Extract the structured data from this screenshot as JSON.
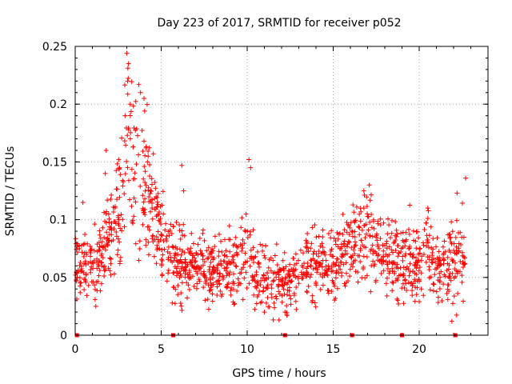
{
  "chart_data": {
    "type": "scatter",
    "title": "Day 223 of 2017, SRMTID for receiver p052",
    "xlabel": "GPS time / hours",
    "ylabel": "SRMTID / TECUs",
    "xlim": [
      0,
      24
    ],
    "ylim": [
      0,
      0.25
    ],
    "xticks": [
      0,
      5,
      10,
      15,
      20
    ],
    "yticks": [
      0,
      0.05,
      0.1,
      0.15,
      0.2,
      0.25
    ],
    "xtick_labels": [
      "0",
      "5",
      "10",
      "15",
      "20"
    ],
    "ytick_labels": [
      "0",
      "0.05",
      "0.1",
      "0.15",
      "0.2",
      "0.25"
    ],
    "grid": true,
    "marker": "+",
    "color": "#ff0000",
    "data_span_hours": [
      0,
      22.7
    ],
    "gap_markers_x": [
      0.1,
      5.7,
      12.2,
      16.1,
      19.0,
      22.1
    ],
    "trend": [
      {
        "x": 0.0,
        "y": 0.065,
        "spread": 0.014
      },
      {
        "x": 0.5,
        "y": 0.06,
        "spread": 0.014
      },
      {
        "x": 1.0,
        "y": 0.058,
        "spread": 0.014
      },
      {
        "x": 1.5,
        "y": 0.07,
        "spread": 0.017
      },
      {
        "x": 2.0,
        "y": 0.085,
        "spread": 0.02
      },
      {
        "x": 2.5,
        "y": 0.11,
        "spread": 0.025
      },
      {
        "x": 3.0,
        "y": 0.16,
        "spread": 0.035
      },
      {
        "x": 3.5,
        "y": 0.15,
        "spread": 0.035
      },
      {
        "x": 4.0,
        "y": 0.135,
        "spread": 0.03
      },
      {
        "x": 4.5,
        "y": 0.105,
        "spread": 0.022
      },
      {
        "x": 5.0,
        "y": 0.085,
        "spread": 0.018
      },
      {
        "x": 5.5,
        "y": 0.07,
        "spread": 0.016
      },
      {
        "x": 6.0,
        "y": 0.065,
        "spread": 0.016
      },
      {
        "x": 7.0,
        "y": 0.06,
        "spread": 0.015
      },
      {
        "x": 8.0,
        "y": 0.055,
        "spread": 0.015
      },
      {
        "x": 9.0,
        "y": 0.06,
        "spread": 0.015
      },
      {
        "x": 10.0,
        "y": 0.07,
        "spread": 0.018
      },
      {
        "x": 10.5,
        "y": 0.055,
        "spread": 0.016
      },
      {
        "x": 11.0,
        "y": 0.05,
        "spread": 0.014
      },
      {
        "x": 12.0,
        "y": 0.045,
        "spread": 0.014
      },
      {
        "x": 13.0,
        "y": 0.05,
        "spread": 0.015
      },
      {
        "x": 14.0,
        "y": 0.065,
        "spread": 0.017
      },
      {
        "x": 15.0,
        "y": 0.058,
        "spread": 0.015
      },
      {
        "x": 16.0,
        "y": 0.075,
        "spread": 0.018
      },
      {
        "x": 17.0,
        "y": 0.085,
        "spread": 0.02
      },
      {
        "x": 18.0,
        "y": 0.07,
        "spread": 0.017
      },
      {
        "x": 19.0,
        "y": 0.065,
        "spread": 0.016
      },
      {
        "x": 20.0,
        "y": 0.06,
        "spread": 0.016
      },
      {
        "x": 20.5,
        "y": 0.075,
        "spread": 0.017
      },
      {
        "x": 21.0,
        "y": 0.055,
        "spread": 0.015
      },
      {
        "x": 22.0,
        "y": 0.065,
        "spread": 0.016
      },
      {
        "x": 22.7,
        "y": 0.075,
        "spread": 0.018
      }
    ],
    "peaks": [
      {
        "x": 3.0,
        "y": 0.244
      },
      {
        "x": 3.1,
        "y": 0.235
      },
      {
        "x": 3.05,
        "y": 0.22
      },
      {
        "x": 3.7,
        "y": 0.217
      },
      {
        "x": 3.8,
        "y": 0.21
      },
      {
        "x": 3.2,
        "y": 0.2
      },
      {
        "x": 4.0,
        "y": 0.205
      },
      {
        "x": 2.9,
        "y": 0.19
      },
      {
        "x": 1.8,
        "y": 0.16
      },
      {
        "x": 1.75,
        "y": 0.14
      },
      {
        "x": 4.2,
        "y": 0.15
      },
      {
        "x": 6.2,
        "y": 0.147
      },
      {
        "x": 10.1,
        "y": 0.152
      },
      {
        "x": 10.2,
        "y": 0.145
      },
      {
        "x": 22.7,
        "y": 0.136
      },
      {
        "x": 17.1,
        "y": 0.13
      },
      {
        "x": 6.3,
        "y": 0.125
      },
      {
        "x": 22.2,
        "y": 0.123
      },
      {
        "x": 0.45,
        "y": 0.115
      },
      {
        "x": 20.5,
        "y": 0.11
      },
      {
        "x": 21.9,
        "y": 0.012
      },
      {
        "x": 12.2,
        "y": 0.02
      },
      {
        "x": 1.2,
        "y": 0.025
      },
      {
        "x": 11.0,
        "y": 0.02
      },
      {
        "x": 13.8,
        "y": 0.03
      }
    ]
  }
}
